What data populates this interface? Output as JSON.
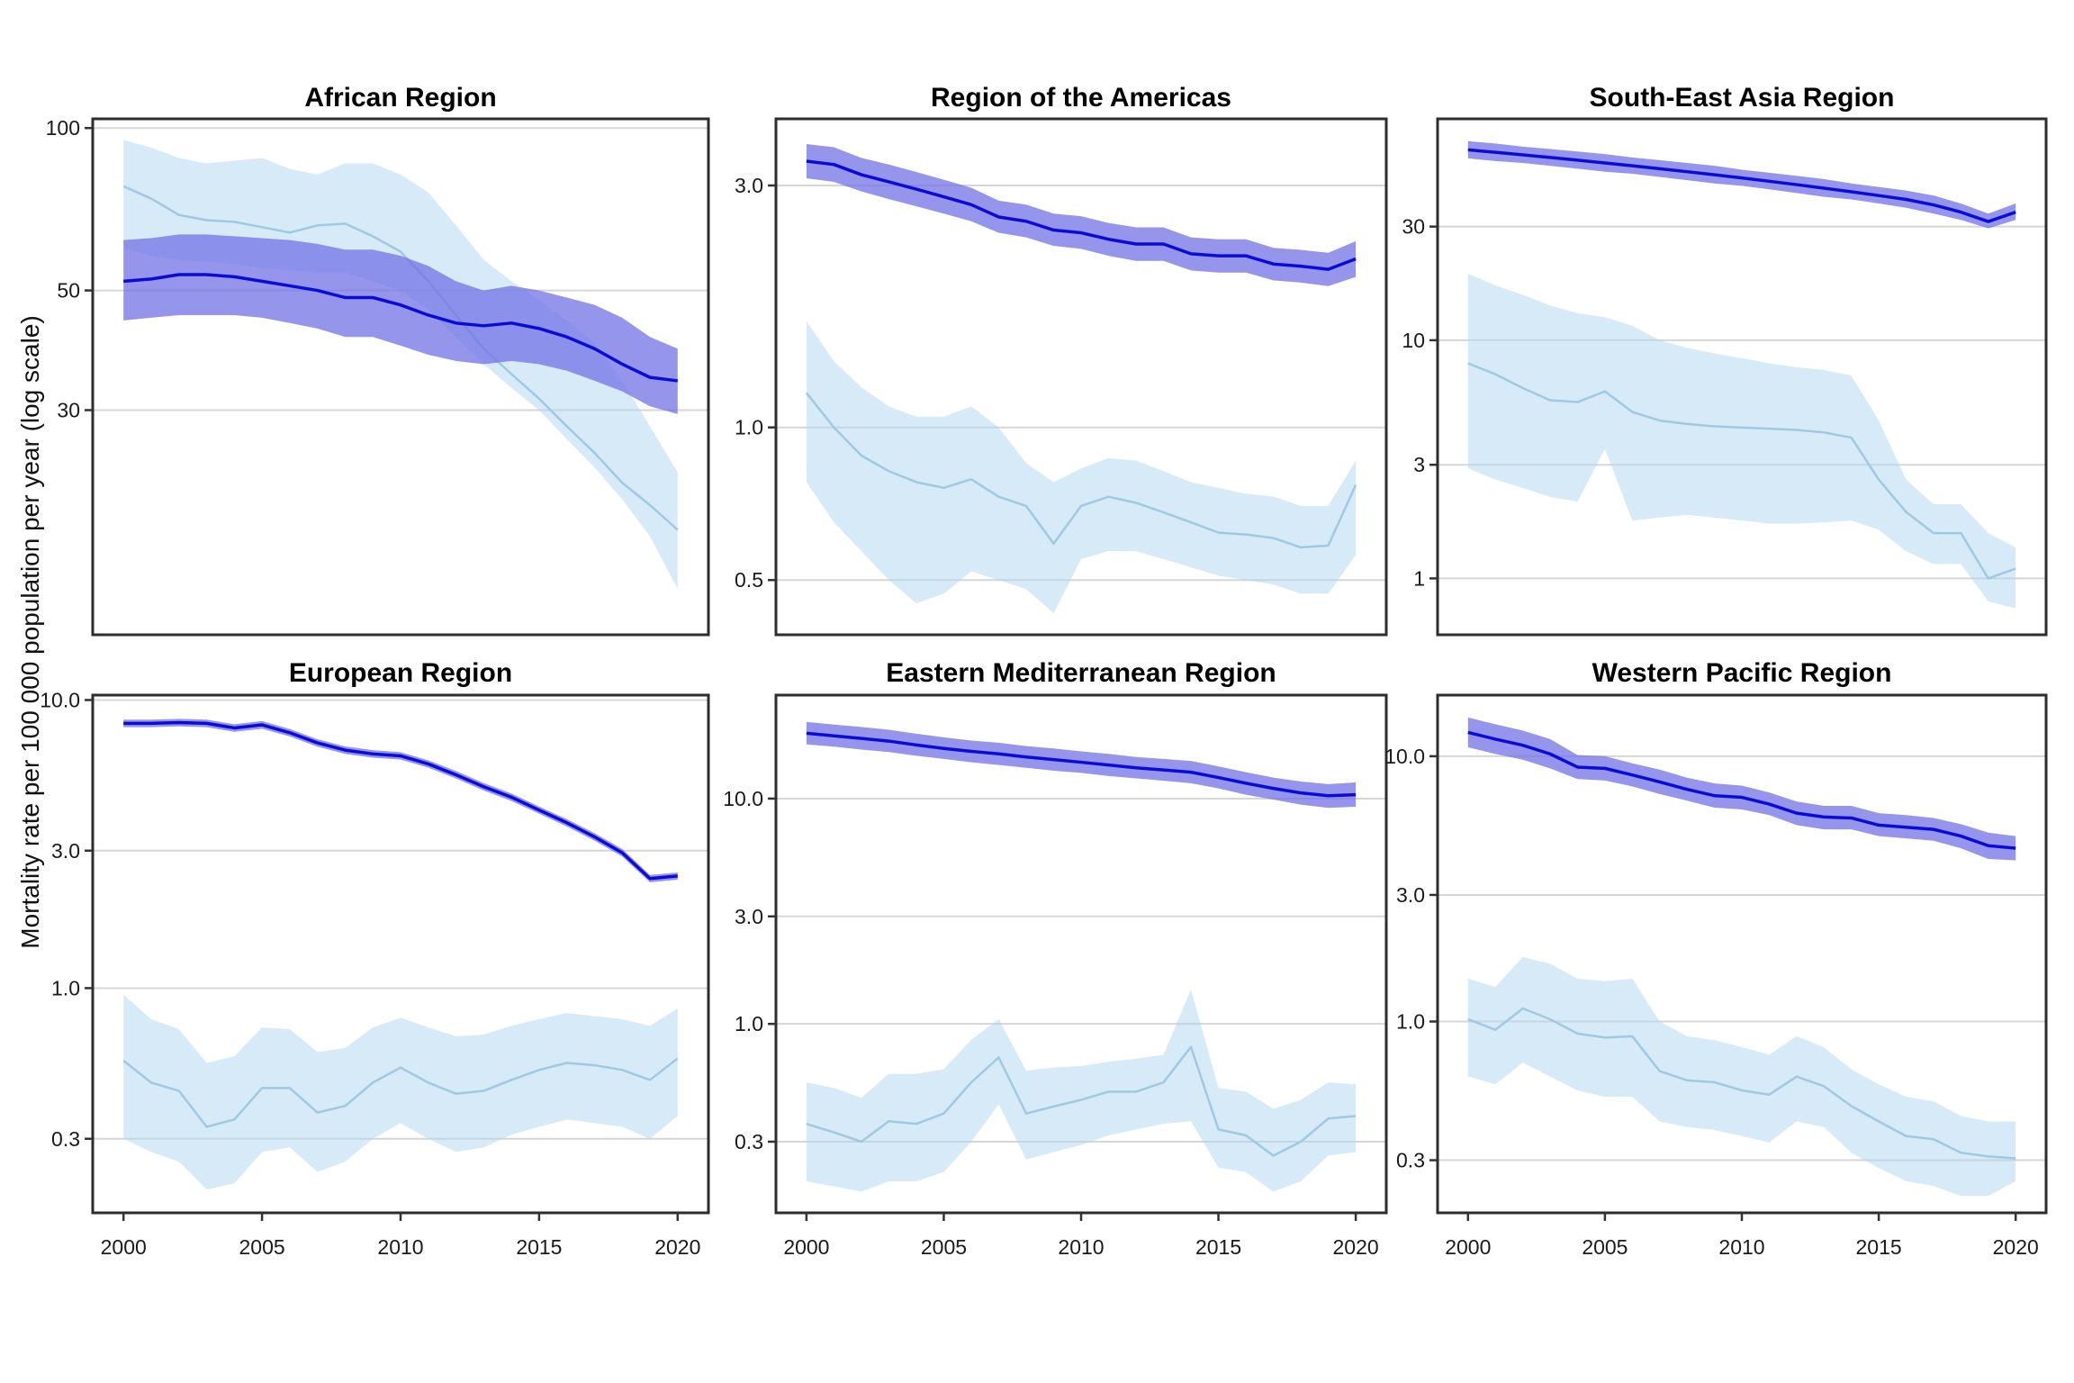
{
  "figure": {
    "ylabel": "Mortality rate per 100 000 population per year (log scale)"
  },
  "colors": {
    "dark_line": "#0b0bd8",
    "dark_band": "rgba(113,113,230,0.75)",
    "light_line": "#9fc9e2",
    "light_band": "rgba(173,214,240,0.5)",
    "grid": "#d6d6d6",
    "frame": "#2d2d2d",
    "tick": "#333333",
    "text": "#1a1a1a"
  },
  "years": [
    2000,
    2001,
    2002,
    2003,
    2004,
    2005,
    2006,
    2007,
    2008,
    2009,
    2010,
    2011,
    2012,
    2013,
    2014,
    2015,
    2016,
    2017,
    2018,
    2019,
    2020
  ],
  "xticks": {
    "values": [
      2000,
      2005,
      2010,
      2015,
      2020
    ],
    "labels": [
      "2000",
      "2005",
      "2010",
      "2015",
      "2020"
    ]
  },
  "chart_data": [
    {
      "type": "line",
      "title": "African Region",
      "ylim": [
        11.5,
        104
      ],
      "yticks": [
        {
          "label": "100",
          "value": 100
        },
        {
          "label": "50",
          "value": 50
        },
        {
          "label": "30",
          "value": 30
        }
      ],
      "series": [
        {
          "name": "dark-blue-estimate",
          "color_key": "dark",
          "values": [
            52,
            52.5,
            53.5,
            53.5,
            53,
            52,
            51,
            50,
            48.5,
            48.5,
            47,
            45,
            43.5,
            43,
            43.5,
            42.5,
            41,
            39,
            36.5,
            34.5,
            34
          ],
          "lower": [
            44,
            44.5,
            45,
            45,
            45,
            44.5,
            43.5,
            42.5,
            41,
            41,
            39.5,
            38,
            37,
            36.5,
            37,
            36.5,
            35.5,
            34,
            32.5,
            30.5,
            29.5
          ],
          "upper": [
            62,
            62.5,
            63.5,
            63.5,
            63,
            62.5,
            62,
            61,
            59.5,
            59.5,
            58,
            55.5,
            52,
            50,
            51,
            50,
            48.5,
            47,
            44.5,
            41,
            39
          ]
        },
        {
          "name": "light-blue-estimate",
          "color_key": "light",
          "values": [
            78,
            74,
            69,
            67.5,
            67,
            65.5,
            64,
            66,
            66.5,
            63,
            59,
            52,
            45,
            39,
            35,
            31.5,
            28,
            25,
            22,
            20,
            18
          ],
          "lower": [
            60,
            58,
            57,
            56.5,
            56,
            55,
            54.5,
            54,
            54,
            52,
            50,
            46,
            41,
            36.5,
            33,
            30,
            26.5,
            23.5,
            20.5,
            17.5,
            14
          ],
          "upper": [
            95,
            92,
            88,
            86,
            87,
            88,
            84,
            82,
            86,
            86,
            82,
            76,
            66,
            57,
            52,
            48,
            44,
            40,
            34,
            28,
            23
          ]
        }
      ]
    },
    {
      "type": "line",
      "title": "Region of the Americas",
      "ylim": [
        0.39,
        4.06
      ],
      "yticks": [
        {
          "label": "3.0",
          "value": 3
        },
        {
          "label": "1.0",
          "value": 1
        },
        {
          "label": "0.5",
          "value": 0.5
        }
      ],
      "series": [
        {
          "name": "dark-blue-estimate",
          "color_key": "dark",
          "values": [
            3.35,
            3.3,
            3.15,
            3.05,
            2.95,
            2.85,
            2.75,
            2.6,
            2.55,
            2.45,
            2.42,
            2.35,
            2.3,
            2.3,
            2.2,
            2.18,
            2.18,
            2.1,
            2.08,
            2.05,
            2.15
          ],
          "lower": [
            3.1,
            3.05,
            2.92,
            2.82,
            2.73,
            2.64,
            2.55,
            2.42,
            2.37,
            2.28,
            2.25,
            2.18,
            2.13,
            2.13,
            2.04,
            2.02,
            2.02,
            1.95,
            1.93,
            1.9,
            1.98
          ],
          "upper": [
            3.62,
            3.57,
            3.4,
            3.3,
            3.19,
            3.08,
            2.97,
            2.8,
            2.75,
            2.64,
            2.61,
            2.53,
            2.48,
            2.48,
            2.37,
            2.35,
            2.35,
            2.26,
            2.24,
            2.21,
            2.33
          ]
        },
        {
          "name": "light-blue-estimate",
          "color_key": "light",
          "values": [
            1.17,
            1.0,
            0.88,
            0.82,
            0.78,
            0.76,
            0.79,
            0.73,
            0.7,
            0.59,
            0.7,
            0.73,
            0.71,
            0.68,
            0.65,
            0.62,
            0.615,
            0.605,
            0.58,
            0.585,
            0.77
          ],
          "lower": [
            0.78,
            0.65,
            0.57,
            0.5,
            0.45,
            0.47,
            0.52,
            0.5,
            0.48,
            0.43,
            0.55,
            0.57,
            0.57,
            0.55,
            0.53,
            0.51,
            0.5,
            0.49,
            0.47,
            0.47,
            0.56
          ],
          "upper": [
            1.62,
            1.35,
            1.2,
            1.1,
            1.05,
            1.05,
            1.1,
            1.0,
            0.85,
            0.78,
            0.83,
            0.87,
            0.86,
            0.82,
            0.78,
            0.76,
            0.74,
            0.73,
            0.7,
            0.7,
            0.86
          ]
        }
      ]
    },
    {
      "type": "line",
      "title": "South-East Asia Region",
      "ylim": [
        0.58,
        85
      ],
      "yticks": [
        {
          "label": "30",
          "value": 30
        },
        {
          "label": "10",
          "value": 10
        },
        {
          "label": "3",
          "value": 3
        },
        {
          "label": "1",
          "value": 1
        }
      ],
      "series": [
        {
          "name": "dark-blue-estimate",
          "color_key": "dark",
          "values": [
            63,
            61.5,
            60,
            58.5,
            57,
            55.5,
            54,
            52.5,
            51,
            49.5,
            48,
            46.5,
            45,
            43.5,
            42,
            40.5,
            39,
            37,
            34.5,
            31.5,
            34.5
          ],
          "lower": [
            58,
            56.5,
            55.5,
            54,
            52.5,
            51,
            50,
            48.5,
            47,
            45.5,
            44.5,
            43,
            41.5,
            40,
            39,
            37.5,
            36,
            34,
            32,
            29.5,
            32
          ],
          "upper": [
            68.5,
            67,
            65,
            63.5,
            62,
            60.5,
            58.5,
            57,
            55.5,
            54,
            52,
            50.5,
            49,
            47.5,
            45.5,
            44,
            42.5,
            40.5,
            37.5,
            34,
            37.5
          ]
        },
        {
          "name": "light-blue-estimate",
          "color_key": "light",
          "values": [
            8,
            7.2,
            6.3,
            5.6,
            5.5,
            6.1,
            5.0,
            4.6,
            4.45,
            4.35,
            4.3,
            4.25,
            4.2,
            4.1,
            3.9,
            2.6,
            1.9,
            1.55,
            1.55,
            1.0,
            1.1
          ],
          "lower": [
            2.9,
            2.6,
            2.4,
            2.2,
            2.1,
            3.5,
            1.75,
            1.8,
            1.85,
            1.8,
            1.75,
            1.7,
            1.7,
            1.72,
            1.75,
            1.6,
            1.3,
            1.15,
            1.15,
            0.8,
            0.75
          ],
          "upper": [
            19,
            17,
            15.5,
            14,
            13,
            12.5,
            11.5,
            10,
            9.3,
            8.8,
            8.4,
            8.0,
            7.7,
            7.5,
            7.1,
            4.6,
            2.6,
            2.05,
            2.05,
            1.55,
            1.35
          ]
        }
      ]
    },
    {
      "type": "line",
      "title": "European Region",
      "ylim": [
        0.166,
        10.4
      ],
      "yticks": [
        {
          "label": "10.0",
          "value": 10
        },
        {
          "label": "3.0",
          "value": 3
        },
        {
          "label": "1.0",
          "value": 1
        },
        {
          "label": "0.3",
          "value": 0.3
        }
      ],
      "series": [
        {
          "name": "dark-blue-estimate",
          "color_key": "dark",
          "values": [
            8.3,
            8.3,
            8.35,
            8.3,
            8.0,
            8.2,
            7.7,
            7.1,
            6.7,
            6.5,
            6.4,
            6.0,
            5.5,
            5.0,
            4.6,
            4.15,
            3.75,
            3.35,
            2.95,
            2.4,
            2.45
          ],
          "lower": [
            8.05,
            8.05,
            8.1,
            8.05,
            7.76,
            7.95,
            7.47,
            6.89,
            6.5,
            6.31,
            6.21,
            5.82,
            5.34,
            4.85,
            4.46,
            4.03,
            3.64,
            3.25,
            2.86,
            2.33,
            2.38
          ],
          "upper": [
            8.55,
            8.55,
            8.6,
            8.55,
            8.24,
            8.45,
            7.93,
            7.31,
            6.9,
            6.7,
            6.59,
            6.18,
            5.67,
            5.15,
            4.74,
            4.27,
            3.86,
            3.45,
            3.04,
            2.47,
            2.52
          ]
        },
        {
          "name": "light-blue-estimate",
          "color_key": "light",
          "values": [
            0.56,
            0.47,
            0.44,
            0.33,
            0.35,
            0.45,
            0.45,
            0.37,
            0.39,
            0.47,
            0.53,
            0.47,
            0.43,
            0.44,
            0.48,
            0.52,
            0.55,
            0.54,
            0.52,
            0.48,
            0.57
          ],
          "lower": [
            0.3,
            0.27,
            0.25,
            0.2,
            0.21,
            0.27,
            0.28,
            0.23,
            0.25,
            0.3,
            0.34,
            0.3,
            0.27,
            0.28,
            0.31,
            0.33,
            0.35,
            0.34,
            0.33,
            0.3,
            0.36
          ],
          "upper": [
            0.95,
            0.78,
            0.72,
            0.55,
            0.58,
            0.73,
            0.72,
            0.6,
            0.62,
            0.73,
            0.79,
            0.73,
            0.68,
            0.69,
            0.74,
            0.78,
            0.82,
            0.8,
            0.78,
            0.74,
            0.85
          ]
        }
      ]
    },
    {
      "type": "line",
      "title": "Eastern Mediterranean Region",
      "ylim": [
        0.145,
        28.8
      ],
      "yticks": [
        {
          "label": "10.0",
          "value": 10
        },
        {
          "label": "3.0",
          "value": 3
        },
        {
          "label": "1.0",
          "value": 1
        },
        {
          "label": "0.3",
          "value": 0.3
        }
      ],
      "series": [
        {
          "name": "dark-blue-estimate",
          "color_key": "dark",
          "values": [
            19.5,
            19,
            18.5,
            18,
            17.3,
            16.7,
            16.2,
            15.8,
            15.3,
            14.9,
            14.5,
            14.1,
            13.7,
            13.4,
            13.1,
            12.4,
            11.7,
            11.1,
            10.6,
            10.3,
            10.4
          ],
          "lower": [
            17.4,
            17,
            16.5,
            16.1,
            15.5,
            15,
            14.5,
            14.1,
            13.7,
            13.3,
            13,
            12.6,
            12.3,
            12,
            11.7,
            11.1,
            10.4,
            9.9,
            9.4,
            9.1,
            9.2
          ],
          "upper": [
            21.9,
            21.3,
            20.8,
            20.2,
            19.4,
            18.7,
            18.1,
            17.7,
            17.1,
            16.7,
            16.2,
            15.8,
            15.3,
            15,
            14.7,
            13.9,
            13.1,
            12.4,
            11.9,
            11.6,
            11.8
          ]
        },
        {
          "name": "light-blue-estimate",
          "color_key": "light",
          "values": [
            0.36,
            0.33,
            0.3,
            0.37,
            0.36,
            0.4,
            0.55,
            0.71,
            0.4,
            0.43,
            0.46,
            0.5,
            0.5,
            0.55,
            0.79,
            0.34,
            0.32,
            0.26,
            0.3,
            0.38,
            0.39
          ],
          "lower": [
            0.2,
            0.19,
            0.18,
            0.2,
            0.2,
            0.22,
            0.3,
            0.44,
            0.25,
            0.27,
            0.29,
            0.32,
            0.34,
            0.36,
            0.37,
            0.23,
            0.22,
            0.18,
            0.2,
            0.26,
            0.27
          ],
          "upper": [
            0.55,
            0.52,
            0.47,
            0.6,
            0.6,
            0.63,
            0.85,
            1.05,
            0.62,
            0.64,
            0.65,
            0.68,
            0.7,
            0.73,
            1.42,
            0.52,
            0.5,
            0.42,
            0.46,
            0.55,
            0.54
          ]
        }
      ]
    },
    {
      "type": "line",
      "title": "Western Pacific Region",
      "ylim": [
        0.19,
        17.0
      ],
      "yticks": [
        {
          "label": "10.0",
          "value": 10
        },
        {
          "label": "3.0",
          "value": 3
        },
        {
          "label": "1.0",
          "value": 1
        },
        {
          "label": "0.3",
          "value": 0.3
        }
      ],
      "series": [
        {
          "name": "dark-blue-estimate",
          "color_key": "dark",
          "values": [
            12.3,
            11.6,
            11.0,
            10.2,
            9.1,
            9.0,
            8.5,
            8.0,
            7.5,
            7.1,
            7.0,
            6.6,
            6.1,
            5.9,
            5.85,
            5.5,
            5.4,
            5.3,
            5.0,
            4.6,
            4.5
          ],
          "lower": [
            10.8,
            10.2,
            9.7,
            9.0,
            8.2,
            8.1,
            7.7,
            7.2,
            6.8,
            6.4,
            6.3,
            6.0,
            5.5,
            5.3,
            5.3,
            5.0,
            4.9,
            4.8,
            4.5,
            4.1,
            4.05
          ],
          "upper": [
            14,
            13.2,
            12.5,
            11.6,
            10.1,
            10,
            9.4,
            8.9,
            8.3,
            7.9,
            7.75,
            7.3,
            6.75,
            6.5,
            6.5,
            6.1,
            6.0,
            5.85,
            5.55,
            5.15,
            5.0
          ]
        },
        {
          "name": "light-blue-estimate",
          "color_key": "light",
          "values": [
            1.02,
            0.93,
            1.12,
            1.02,
            0.9,
            0.87,
            0.88,
            0.65,
            0.6,
            0.59,
            0.55,
            0.53,
            0.62,
            0.57,
            0.48,
            0.42,
            0.37,
            0.36,
            0.32,
            0.31,
            0.305
          ],
          "lower": [
            0.62,
            0.58,
            0.7,
            0.62,
            0.55,
            0.52,
            0.52,
            0.42,
            0.4,
            0.39,
            0.37,
            0.35,
            0.42,
            0.4,
            0.32,
            0.28,
            0.25,
            0.24,
            0.22,
            0.22,
            0.25
          ],
          "upper": [
            1.45,
            1.35,
            1.75,
            1.65,
            1.45,
            1.42,
            1.45,
            1.0,
            0.88,
            0.85,
            0.8,
            0.75,
            0.88,
            0.8,
            0.66,
            0.58,
            0.52,
            0.5,
            0.44,
            0.42,
            0.42
          ]
        }
      ]
    }
  ]
}
